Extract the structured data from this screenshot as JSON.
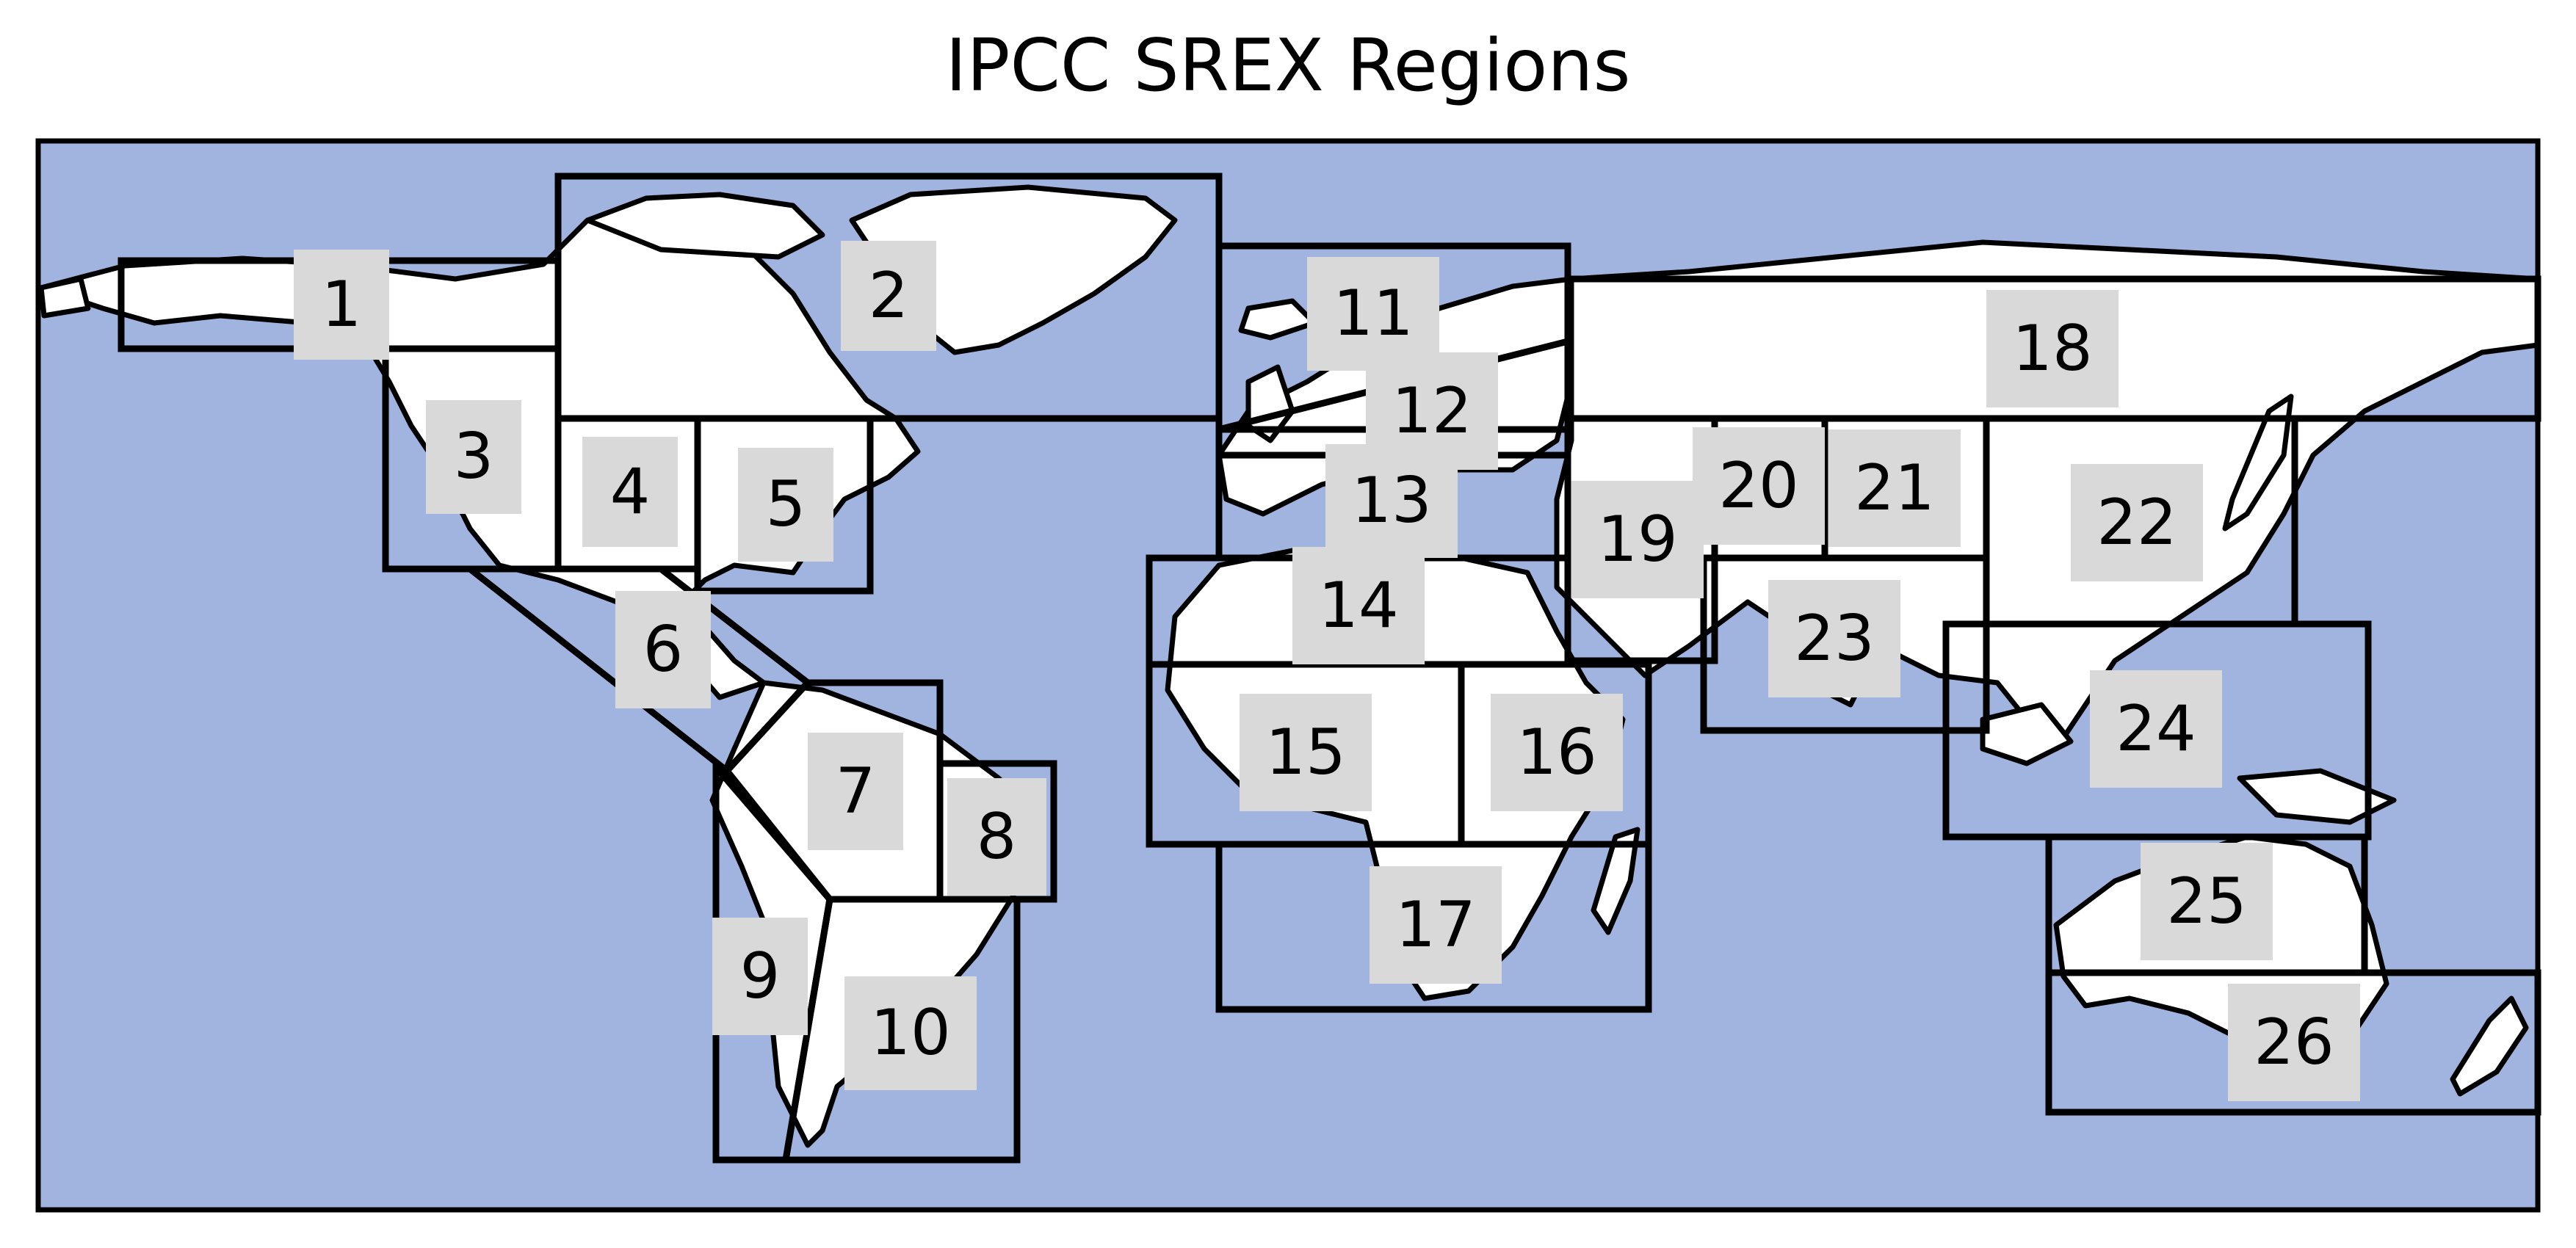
{
  "title": "IPCC SREX Regions",
  "colors": {
    "ocean": "#a1b4df",
    "land": "#ffffff",
    "outline": "#000000",
    "label_box": "#d9d9d9"
  },
  "regions": [
    {
      "id": "1",
      "label": "1"
    },
    {
      "id": "2",
      "label": "2"
    },
    {
      "id": "3",
      "label": "3"
    },
    {
      "id": "4",
      "label": "4"
    },
    {
      "id": "5",
      "label": "5"
    },
    {
      "id": "6",
      "label": "6"
    },
    {
      "id": "7",
      "label": "7"
    },
    {
      "id": "8",
      "label": "8"
    },
    {
      "id": "9",
      "label": "9"
    },
    {
      "id": "10",
      "label": "10"
    },
    {
      "id": "11",
      "label": "11"
    },
    {
      "id": "12",
      "label": "12"
    },
    {
      "id": "13",
      "label": "13"
    },
    {
      "id": "14",
      "label": "14"
    },
    {
      "id": "15",
      "label": "15"
    },
    {
      "id": "16",
      "label": "16"
    },
    {
      "id": "17",
      "label": "17"
    },
    {
      "id": "18",
      "label": "18"
    },
    {
      "id": "19",
      "label": "19"
    },
    {
      "id": "20",
      "label": "20"
    },
    {
      "id": "21",
      "label": "21"
    },
    {
      "id": "22",
      "label": "22"
    },
    {
      "id": "23",
      "label": "23"
    },
    {
      "id": "24",
      "label": "24"
    },
    {
      "id": "25",
      "label": "25"
    },
    {
      "id": "26",
      "label": "26"
    }
  ]
}
